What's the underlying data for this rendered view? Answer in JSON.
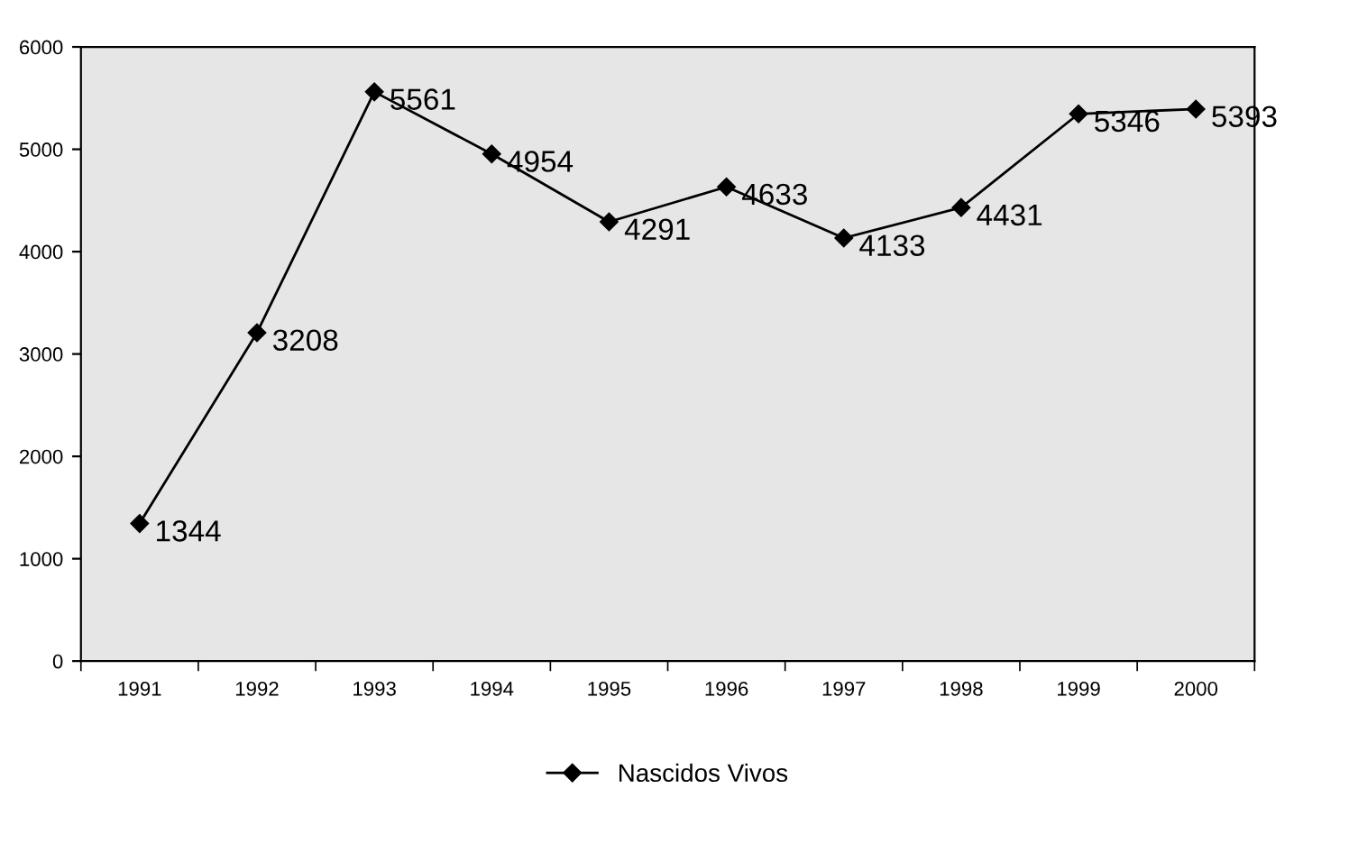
{
  "chart_data": {
    "type": "line",
    "categories": [
      "1991",
      "1992",
      "1993",
      "1994",
      "1995",
      "1996",
      "1997",
      "1998",
      "1999",
      "2000"
    ],
    "series": [
      {
        "name": "Nascidos Vivos",
        "color": "#000000",
        "values": [
          1344,
          3208,
          5561,
          4954,
          4291,
          4633,
          4133,
          4431,
          5346,
          5393
        ]
      }
    ],
    "ylim": [
      0,
      6000
    ],
    "yticks": [
      0,
      1000,
      2000,
      3000,
      4000,
      5000,
      6000
    ],
    "data_labels": true,
    "marker": "diamond",
    "line_style": "solid",
    "grid": false,
    "legend": "bottom"
  }
}
